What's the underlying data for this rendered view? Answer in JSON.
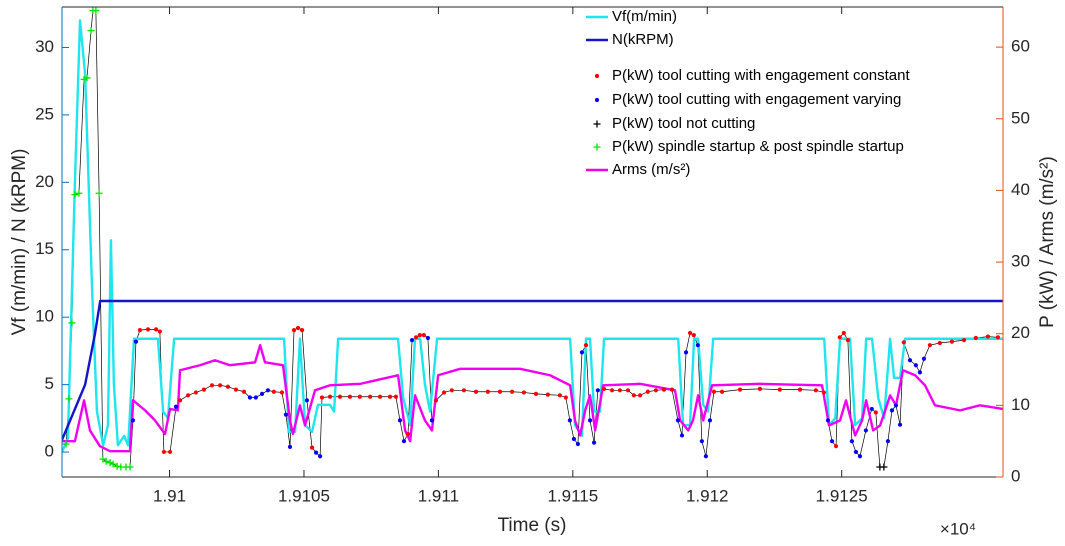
{
  "chart_data": {
    "type": "line",
    "xlabel": "Time (s)",
    "x_exponent": "×10⁴",
    "ylabel": "Vf (m/min) / N (kRPM)",
    "y2label": "P (kW) / Arms (m/s²)",
    "y_axis_color": "#0072BD",
    "y2_axis_color": "#D95319",
    "xlim": [
      19096,
      19131
    ],
    "xticks": [
      {
        "value": 19100,
        "label": "1.91"
      },
      {
        "value": 19105,
        "label": "1.9105"
      },
      {
        "value": 19110,
        "label": "1.911"
      },
      {
        "value": 19115,
        "label": "1.9115"
      },
      {
        "value": 19120,
        "label": "1.912"
      },
      {
        "value": 19125,
        "label": "1.9125"
      }
    ],
    "ylim": [
      -1.85,
      33
    ],
    "yticks": [
      0,
      5,
      10,
      15,
      20,
      25,
      30
    ],
    "y2lim": [
      0,
      65.6
    ],
    "y2ticks": [
      0,
      10,
      20,
      30,
      40,
      50,
      60
    ],
    "grid": false,
    "legend": "top-right",
    "power_x": [
      19096.15,
      19096.26,
      19096.37,
      19096.48,
      19096.63,
      19096.82,
      19096.93,
      19097.08,
      19097.15,
      19097.26,
      19097.38,
      19097.52,
      19097.64,
      19097.79,
      19097.9,
      19098.05,
      19098.19,
      19098.38,
      19098.53,
      19098.64,
      19098.75,
      19098.9,
      19099.2,
      19099.5,
      19099.64,
      19099.79,
      19100.02,
      19100.24,
      19100.39,
      19100.69,
      19100.98,
      19101.28,
      19101.58,
      19101.88,
      19102.17,
      19102.47,
      19102.77,
      19102.99,
      19103.21,
      19103.44,
      19103.66,
      19103.88,
      19104.18,
      19104.33,
      19104.48,
      19104.63,
      19104.78,
      19104.93,
      19105.11,
      19105.3,
      19105.45,
      19105.6,
      19105.67,
      19105.97,
      19106.34,
      19106.71,
      19107.08,
      19107.46,
      19107.83,
      19108.2,
      19108.42,
      19108.57,
      19108.72,
      19108.87,
      19109.02,
      19109.17,
      19109.31,
      19109.46,
      19109.61,
      19109.76,
      19109.91,
      19110.21,
      19110.5,
      19110.95,
      19111.4,
      19111.84,
      19112.29,
      19112.74,
      19113.18,
      19113.63,
      19114.07,
      19114.52,
      19114.74,
      19114.89,
      19115.04,
      19115.19,
      19115.34,
      19115.49,
      19115.64,
      19115.79,
      19115.93,
      19116.16,
      19116.46,
      19116.75,
      19117.05,
      19117.27,
      19117.5,
      19117.79,
      19118.09,
      19118.39,
      19118.69,
      19118.91,
      19119.06,
      19119.21,
      19119.36,
      19119.5,
      19119.65,
      19119.8,
      19119.95,
      19120.1,
      19120.25,
      19120.55,
      19121.22,
      19121.96,
      19122.7,
      19123.45,
      19124.04,
      19124.34,
      19124.49,
      19124.64,
      19124.79,
      19124.93,
      19125.08,
      19125.23,
      19125.38,
      19125.53,
      19125.68,
      19125.9,
      19126.12,
      19126.27,
      19126.42,
      19126.57,
      19126.72,
      19126.87,
      19127.02,
      19127.17,
      19127.31,
      19127.54,
      19127.76,
      19127.91,
      19128.06,
      19128.28,
      19128.65,
      19129.1,
      19129.55,
      19129.99,
      19130.44,
      19130.81
    ],
    "connector_color": "#000000",
    "series": [
      {
        "name": "Vf(m/min)",
        "color": "#1EE6EE",
        "x": [
          19096,
          19096.22,
          19096.48,
          19096.67,
          19096.86,
          19097.12,
          19097.3,
          19097.53,
          19097.71,
          19097.82,
          19097.93,
          19098.08,
          19098.31,
          19098.46,
          19098.68,
          19099.57,
          19099.76,
          19099.94,
          19100.17,
          19104.26,
          19104.44,
          19104.67,
          19104.85,
          19105.04,
          19105.3,
          19105.52,
          19105.97,
          19106.12,
          19106.27,
          19108.5,
          19108.69,
          19108.95,
          19109.13,
          19109.32,
          19109.5,
          19109.69,
          19109.95,
          19114.9,
          19115.08,
          19115.34,
          19115.49,
          19115.64,
          19115.79,
          19116.01,
          19116.16,
          19118.92,
          19119.1,
          19119.36,
          19119.51,
          19119.66,
          19119.85,
          19120.03,
          19120.22,
          19124.35,
          19124.53,
          19124.76,
          19124.94,
          19125.31,
          19125.5,
          19125.76,
          19125.91,
          19126.13,
          19126.36,
          19126.58,
          19126.8,
          19126.95,
          19127.17,
          19127.36,
          19131
        ],
        "values": [
          0,
          1,
          20,
          32,
          28,
          12,
          3,
          0.5,
          2,
          15.7,
          5,
          0.5,
          1.2,
          0.5,
          8.4,
          8.4,
          3,
          2.5,
          8.4,
          8.4,
          1.5,
          1.5,
          8.4,
          2,
          1.5,
          3.5,
          3.5,
          3,
          8.4,
          8.4,
          4,
          2,
          8.4,
          8.4,
          5,
          3,
          8.4,
          8.4,
          2,
          1.2,
          8.4,
          8.4,
          3,
          3,
          8.4,
          8.4,
          2,
          2,
          8.4,
          8.4,
          3.5,
          3,
          8.4,
          8.4,
          2,
          2.5,
          8.4,
          8.4,
          2,
          2.5,
          8.4,
          8.4,
          4,
          2.5,
          8.4,
          5.5,
          5.5,
          8.4,
          8.4
        ]
      },
      {
        "name": "N(kRPM)",
        "color": "#1414CC",
        "x": [
          19096,
          19096.86,
          19097.23,
          19097.42,
          19131
        ],
        "values": [
          0.9,
          5,
          8.8,
          11.2,
          11.2
        ]
      },
      {
        "name": "P(kW) tool cutting with engagement constant",
        "color": "#FF0000",
        "axis": "y2",
        "marker": ".",
        "values": [
          null,
          null,
          null,
          null,
          null,
          null,
          null,
          null,
          null,
          null,
          null,
          null,
          null,
          null,
          null,
          null,
          null,
          null,
          null,
          null,
          null,
          20.5,
          20.6,
          20.6,
          20.3,
          3.5,
          3.5,
          null,
          10.7,
          11.4,
          11.8,
          12.2,
          12.8,
          12.8,
          12.6,
          12.2,
          11.9,
          null,
          null,
          null,
          null,
          11.9,
          11.8,
          null,
          null,
          20.5,
          20.8,
          20.5,
          null,
          4.1,
          null,
          null,
          11.1,
          11.2,
          11.2,
          11.2,
          11.2,
          11.2,
          11.2,
          11.2,
          11.2,
          null,
          null,
          6.0,
          null,
          19.5,
          19.8,
          19.8,
          null,
          null,
          10.7,
          11.8,
          12.1,
          12.1,
          11.9,
          11.9,
          11.9,
          11.9,
          11.8,
          11.6,
          11.5,
          11.4,
          11.1,
          null,
          null,
          null,
          null,
          18.4,
          null,
          null,
          null,
          12.3,
          12.1,
          12.1,
          12.1,
          11.4,
          11.4,
          11.9,
          12.1,
          12.2,
          12.2,
          null,
          null,
          null,
          20.1,
          19.8,
          null,
          null,
          null,
          null,
          11.9,
          11.9,
          12.2,
          12.3,
          12.2,
          12.2,
          12.1,
          11.8,
          null,
          null,
          4.3,
          19.5,
          20.1,
          19.1,
          null,
          null,
          null,
          null,
          null,
          9.0,
          null,
          null,
          null,
          null,
          null,
          null,
          18.8,
          null,
          null,
          null,
          null,
          18.4,
          18.7,
          18.9,
          19.1,
          19.4,
          19.6,
          19.5
        ]
      },
      {
        "name": "P(kW) tool cutting with engagement varying",
        "color": "#0000FF",
        "axis": "y2",
        "marker": ".",
        "values": [
          null,
          null,
          null,
          null,
          null,
          null,
          null,
          null,
          null,
          null,
          null,
          null,
          null,
          null,
          null,
          null,
          null,
          null,
          null,
          7.9,
          18.9,
          null,
          null,
          null,
          null,
          null,
          null,
          9.8,
          null,
          null,
          null,
          null,
          null,
          null,
          null,
          null,
          null,
          11.1,
          11.1,
          11.6,
          12.1,
          null,
          null,
          8.7,
          4.2,
          null,
          null,
          null,
          10.7,
          null,
          3.4,
          2.9,
          null,
          null,
          null,
          null,
          null,
          null,
          null,
          null,
          null,
          7.9,
          5.0,
          null,
          19.1,
          null,
          null,
          null,
          19.4,
          7.9,
          null,
          null,
          null,
          null,
          null,
          null,
          null,
          null,
          null,
          null,
          null,
          null,
          null,
          7.9,
          5.3,
          4.6,
          17.4,
          null,
          7.9,
          4.8,
          12.1,
          null,
          null,
          null,
          null,
          null,
          null,
          null,
          null,
          null,
          null,
          7.9,
          5.8,
          17.4,
          null,
          null,
          18.4,
          5.0,
          2.9,
          7.9,
          null,
          null,
          null,
          null,
          null,
          null,
          null,
          null,
          7.9,
          5.0,
          null,
          null,
          null,
          null,
          5.0,
          3.5,
          2.9,
          6.5,
          9.5,
          null,
          null,
          null,
          5.0,
          9.3,
          10.0,
          7.3,
          null,
          16.3,
          15.6,
          14.6,
          16.5,
          null,
          null,
          null,
          null,
          null,
          null,
          null
        ]
      },
      {
        "name": "P(kW) tool not cutting",
        "color": "#000000",
        "axis": "y2",
        "marker": "+",
        "values": [
          null,
          null,
          null,
          null,
          null,
          null,
          null,
          null,
          null,
          null,
          null,
          null,
          null,
          null,
          null,
          null,
          null,
          null,
          null,
          null,
          null,
          null,
          null,
          null,
          null,
          null,
          null,
          null,
          null,
          null,
          null,
          null,
          null,
          null,
          null,
          null,
          null,
          null,
          null,
          null,
          null,
          null,
          null,
          null,
          null,
          null,
          null,
          null,
          null,
          null,
          null,
          null,
          null,
          null,
          null,
          null,
          null,
          null,
          null,
          null,
          null,
          null,
          null,
          null,
          null,
          null,
          null,
          null,
          null,
          null,
          null,
          null,
          null,
          null,
          null,
          null,
          null,
          null,
          null,
          null,
          null,
          null,
          null,
          null,
          null,
          null,
          null,
          null,
          null,
          null,
          null,
          null,
          null,
          null,
          null,
          null,
          null,
          null,
          null,
          null,
          null,
          null,
          null,
          null,
          null,
          null,
          null,
          null,
          null,
          null,
          null,
          null,
          null,
          null,
          null,
          null,
          null,
          null,
          null,
          null,
          null,
          null,
          null,
          null,
          null,
          null,
          null,
          null,
          null,
          null,
          1.4,
          1.4,
          null,
          null,
          null,
          null,
          null,
          null,
          null,
          null,
          null,
          null,
          null,
          null,
          null,
          null,
          null,
          null
        ]
      },
      {
        "name": "P(kW) spindle startup & post spindle startup",
        "color": "#00E600",
        "axis": "y2",
        "marker": "+",
        "values": [
          4.6,
          10.9,
          21.5,
          39.4,
          39.6,
          55.5,
          55.7,
          62.3,
          65.1,
          65.1,
          39.6,
          2.5,
          2.2,
          2.0,
          1.8,
          1.5,
          1.4,
          1.4,
          1.4,
          null,
          null,
          null,
          null,
          null,
          null,
          null,
          null,
          null,
          null,
          null,
          null,
          null,
          null,
          null,
          null,
          null,
          null,
          null,
          null,
          null,
          null,
          null,
          null,
          null,
          null,
          null,
          null,
          null,
          null,
          null,
          null,
          null,
          null,
          null,
          null,
          null,
          null,
          null,
          null,
          null,
          null,
          null,
          null,
          null,
          null,
          null,
          null,
          null,
          null,
          null,
          null,
          null,
          null,
          null,
          null,
          null,
          null,
          null,
          null,
          null,
          null,
          null,
          null,
          null,
          null,
          null,
          null,
          null,
          null,
          null,
          null,
          null,
          null,
          null,
          null,
          null,
          null,
          null,
          null,
          null,
          null,
          null,
          null,
          null,
          null,
          null,
          null,
          null,
          null,
          null,
          null,
          null,
          null,
          null,
          null,
          null,
          null,
          null,
          null,
          null,
          null,
          null,
          null,
          null,
          null,
          null,
          null,
          null,
          null,
          null,
          null,
          null,
          null,
          null,
          null,
          null,
          null,
          null,
          null,
          null,
          null,
          null,
          null,
          null,
          null,
          null,
          null,
          null
        ]
      },
      {
        "name": "Arms (m/s²)",
        "color": "#F000F0",
        "axis": "y2",
        "x": [
          19096,
          19096.48,
          19096.82,
          19097.04,
          19097.41,
          19097.79,
          19098.53,
          19098.64,
          19099.09,
          19099.46,
          19099.83,
          19100.02,
          19100.31,
          19100.39,
          19101.13,
          19101.69,
          19102.25,
          19103.18,
          19103.37,
          19103.55,
          19104.22,
          19104.48,
          19104.59,
          19104.85,
          19105.04,
          19105.41,
          19105.97,
          19107.09,
          19108.5,
          19108.76,
          19108.95,
          19109.13,
          19109.5,
          19109.76,
          19109.99,
          19110.81,
          19113.04,
          19114.15,
          19114.9,
          19115.08,
          19115.27,
          19115.46,
          19115.64,
          19115.83,
          19116.13,
          19117.5,
          19118.8,
          19118.99,
          19119.29,
          19119.47,
          19119.66,
          19119.85,
          19120.18,
          19121.97,
          19124.27,
          19124.53,
          19124.94,
          19125.16,
          19125.5,
          19125.76,
          19125.91,
          19126.17,
          19126.43,
          19126.62,
          19126.8,
          19127.02,
          19127.28,
          19127.73,
          19128.1,
          19128.47,
          19129.4,
          19130.14,
          19131
        ],
        "values": [
          5,
          5,
          10.7,
          6.5,
          4.3,
          3.6,
          3.6,
          10.7,
          9.3,
          7.9,
          6,
          9.5,
          9.3,
          14.9,
          15.6,
          16.3,
          15.6,
          16,
          18.4,
          16,
          15.6,
          7.9,
          6,
          10,
          7.2,
          12.1,
          12.8,
          13,
          14.2,
          6.5,
          5,
          11.4,
          7.9,
          6.5,
          14.2,
          15.1,
          15.1,
          14.2,
          12.8,
          7.9,
          5.8,
          9.3,
          11.4,
          6.5,
          12.8,
          13,
          12.1,
          7.9,
          6.5,
          7.9,
          11.4,
          7.9,
          12.8,
          13,
          12.8,
          7.2,
          7.9,
          10.7,
          5.8,
          7.9,
          10.7,
          6.5,
          7.2,
          9.3,
          11.4,
          10,
          14.9,
          14.2,
          12.8,
          10,
          9.3,
          10,
          9.5
        ]
      }
    ]
  }
}
